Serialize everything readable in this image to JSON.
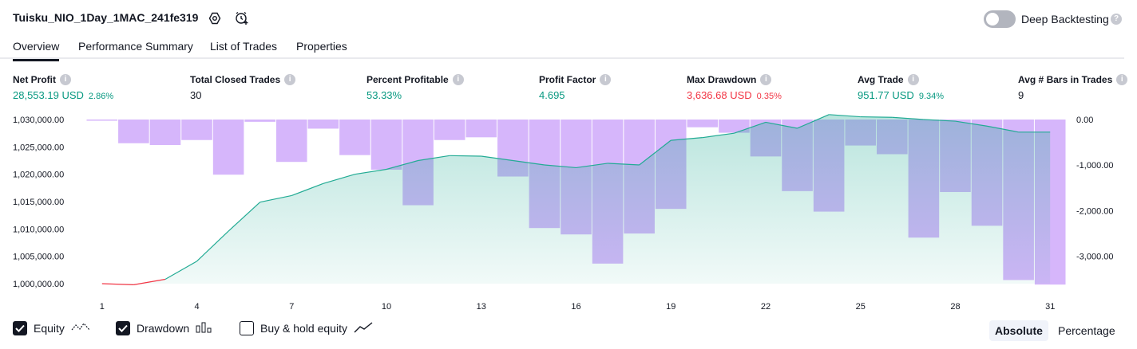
{
  "header": {
    "strategy_name": "Tuisku_NIO_1Day_1MAC_241fe319",
    "settings_icon": "gear-icon",
    "alert_icon": "add-alert-clock-icon",
    "deep_backtesting_label": "Deep Backtesting",
    "deep_backtesting_enabled": false
  },
  "tabs": [
    {
      "label": "Overview",
      "active": true
    },
    {
      "label": "Performance Summary",
      "active": false
    },
    {
      "label": "List of Trades",
      "active": false
    },
    {
      "label": "Properties",
      "active": false
    }
  ],
  "metrics": [
    {
      "label": "Net Profit",
      "value": "28,553.19 USD",
      "pct": "2.86%",
      "color": "green"
    },
    {
      "label": "Total Closed Trades",
      "value": "30",
      "pct": "",
      "color": "dark"
    },
    {
      "label": "Percent Profitable",
      "value": "53.33%",
      "pct": "",
      "color": "green"
    },
    {
      "label": "Profit Factor",
      "value": "4.695",
      "pct": "",
      "color": "green"
    },
    {
      "label": "Max Drawdown",
      "value": "3,636.68 USD",
      "pct": "0.35%",
      "color": "red"
    },
    {
      "label": "Avg Trade",
      "value": "951.77 USD",
      "pct": "9.34%",
      "color": "green"
    },
    {
      "label": "Avg # Bars in Trades",
      "value": "9",
      "pct": "",
      "color": "dark"
    }
  ],
  "colors": {
    "positive": "#089981",
    "negative": "#f23645",
    "drawdown_bar": "#d6b6fb",
    "equity_line": "#22ab94",
    "equity_line_negative": "#f23645"
  },
  "chart_data": {
    "type": "area",
    "x": [
      1,
      2,
      3,
      4,
      5,
      6,
      7,
      8,
      9,
      10,
      11,
      12,
      13,
      14,
      15,
      16,
      17,
      18,
      19,
      20,
      21,
      22,
      23,
      24,
      25,
      26,
      27,
      28,
      29,
      30,
      31
    ],
    "x_ticks": [
      "1",
      "4",
      "7",
      "10",
      "13",
      "16",
      "19",
      "22",
      "25",
      "28",
      "31"
    ],
    "y_left_ticks": [
      "1,000,000.00",
      "1,005,000.00",
      "1,010,000.00",
      "1,015,000.00",
      "1,020,000.00",
      "1,025,000.00",
      "1,030,000.00"
    ],
    "y_left_range": [
      1000000,
      1030000
    ],
    "y_right_ticks": [
      "0.00",
      "-1,000.00",
      "-2,000.00",
      "-3,000.00"
    ],
    "y_right_range": [
      -3600,
      0
    ],
    "series": [
      {
        "name": "Equity",
        "axis": "left",
        "values": [
          1000000,
          999800,
          1000800,
          1004100,
          1009600,
          1014900,
          1016100,
          1018300,
          1020000,
          1020900,
          1022500,
          1023400,
          1023300,
          1022500,
          1021700,
          1021200,
          1022000,
          1021700,
          1026200,
          1026700,
          1027500,
          1029500,
          1028400,
          1030900,
          1030500,
          1030400,
          1030000,
          1029700,
          1028800,
          1027700,
          1027700
        ]
      },
      {
        "name": "Drawdown",
        "axis": "right",
        "values": [
          -20,
          -520,
          -560,
          -450,
          -1210,
          -50,
          -930,
          -200,
          -780,
          -1100,
          -1880,
          -450,
          -390,
          -1250,
          -2380,
          -2520,
          -3160,
          -2500,
          -1960,
          -170,
          -290,
          -810,
          -1570,
          -2020,
          -570,
          -760,
          -2590,
          -1590,
          -2330,
          -3520,
          -3620
        ]
      }
    ]
  },
  "legend": {
    "equity_label": "Equity",
    "equity_checked": true,
    "drawdown_label": "Drawdown",
    "drawdown_checked": true,
    "buyhold_label": "Buy & hold equity",
    "buyhold_checked": false
  },
  "modes": {
    "absolute_label": "Absolute",
    "percentage_label": "Percentage",
    "active": "absolute"
  }
}
